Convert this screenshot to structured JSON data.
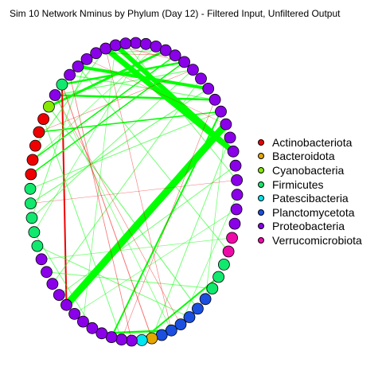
{
  "title": "Sim 10 Network Nminus by Phylum (Day 12) - Filtered Input, Unfiltered Output",
  "colors": {
    "positive_edge": "#00ff00",
    "negative_edge": "#ee0000",
    "node_border": "#000000"
  },
  "legend": [
    {
      "label": "Actinobacteriota",
      "color": "#ee0000"
    },
    {
      "label": "Bacteroidota",
      "color": "#e5a600"
    },
    {
      "label": "Cyanobacteria",
      "color": "#86e800"
    },
    {
      "label": "Firmicutes",
      "color": "#11e86e"
    },
    {
      "label": "Patescibacteria",
      "color": "#00e5ee"
    },
    {
      "label": "Planctomycetota",
      "color": "#1a4fe0"
    },
    {
      "label": "Proteobacteria",
      "color": "#8a00e8"
    },
    {
      "label": "Verrucomicrobiota",
      "color": "#ee0aa8"
    }
  ],
  "network": {
    "node_count": 64,
    "node_phyla": [
      "Proteobacteria",
      "Proteobacteria",
      "Proteobacteria",
      "Proteobacteria",
      "Proteobacteria",
      "Proteobacteria",
      "Proteobacteria",
      "Proteobacteria",
      "Proteobacteria",
      "Proteobacteria",
      "Proteobacteria",
      "Proteobacteria",
      "Proteobacteria",
      "Proteobacteria",
      "Proteobacteria",
      "Proteobacteria",
      "Proteobacteria",
      "Proteobacteria",
      "Proteobacteria",
      "Verrucomicrobiota",
      "Verrucomicrobiota",
      "Firmicutes",
      "Firmicutes",
      "Firmicutes",
      "Planctomycetota",
      "Planctomycetota",
      "Planctomycetota",
      "Planctomycetota",
      "Planctomycetota",
      "Planctomycetota",
      "Bacteroidota",
      "Patescibacteria",
      "Proteobacteria",
      "Proteobacteria",
      "Proteobacteria",
      "Proteobacteria",
      "Proteobacteria",
      "Proteobacteria",
      "Proteobacteria",
      "Proteobacteria",
      "Proteobacteria",
      "Proteobacteria",
      "Proteobacteria",
      "Proteobacteria",
      "Firmicutes",
      "Firmicutes",
      "Firmicutes",
      "Firmicutes",
      "Firmicutes",
      "Actinobacteriota",
      "Actinobacteriota",
      "Actinobacteriota",
      "Actinobacteriota",
      "Actinobacteriota",
      "Cyanobacteria",
      "Proteobacteria",
      "Firmicutes",
      "Proteobacteria",
      "Proteobacteria",
      "Proteobacteria",
      "Proteobacteria",
      "Proteobacteria",
      "Proteobacteria",
      "Proteobacteria"
    ],
    "edges": [
      {
        "from": 39,
        "to": 11,
        "weight": 9,
        "sign": "positive"
      },
      {
        "from": 61,
        "to": 13,
        "weight": 7,
        "sign": "positive"
      },
      {
        "from": 62,
        "to": 13,
        "weight": 6,
        "sign": "positive"
      },
      {
        "from": 8,
        "to": 58,
        "weight": 4,
        "sign": "positive"
      },
      {
        "from": 3,
        "to": 54,
        "weight": 3,
        "sign": "positive"
      },
      {
        "from": 5,
        "to": 56,
        "weight": 2.5,
        "sign": "positive"
      },
      {
        "from": 9,
        "to": 55,
        "weight": 2.5,
        "sign": "positive"
      },
      {
        "from": 10,
        "to": 34,
        "weight": 2,
        "sign": "positive"
      },
      {
        "from": 35,
        "to": 28,
        "weight": 2.5,
        "sign": "positive"
      },
      {
        "from": 22,
        "to": 31,
        "weight": 2,
        "sign": "positive"
      },
      {
        "from": 39,
        "to": 56,
        "weight": 2,
        "sign": "negative"
      },
      {
        "from": 10,
        "to": 52,
        "weight": 1.5,
        "sign": "positive"
      },
      {
        "from": 49,
        "to": 5,
        "weight": 1.5,
        "sign": "positive"
      },
      {
        "from": 50,
        "to": 4,
        "weight": 1.5,
        "sign": "positive"
      },
      {
        "from": 47,
        "to": 8,
        "weight": 1.2,
        "sign": "positive"
      },
      {
        "from": 51,
        "to": 61,
        "weight": 1.2,
        "sign": "positive"
      },
      {
        "from": 6,
        "to": 55,
        "weight": 1.2,
        "sign": "positive"
      },
      {
        "from": 57,
        "to": 9,
        "weight": 1.2,
        "sign": "positive"
      },
      {
        "from": 60,
        "to": 3,
        "weight": 1.2,
        "sign": "positive"
      },
      {
        "from": 54,
        "to": 25,
        "weight": 1.2,
        "sign": "positive"
      },
      {
        "from": 53,
        "to": 33,
        "weight": 1,
        "sign": "positive"
      },
      {
        "from": 48,
        "to": 10,
        "weight": 1,
        "sign": "positive"
      },
      {
        "from": 46,
        "to": 6,
        "weight": 1,
        "sign": "positive"
      },
      {
        "from": 45,
        "to": 36,
        "weight": 1,
        "sign": "positive"
      },
      {
        "from": 44,
        "to": 26,
        "weight": 1,
        "sign": "positive"
      },
      {
        "from": 42,
        "to": 23,
        "weight": 1,
        "sign": "positive"
      },
      {
        "from": 59,
        "to": 46,
        "weight": 1,
        "sign": "positive"
      },
      {
        "from": 63,
        "to": 15,
        "weight": 1,
        "sign": "positive"
      },
      {
        "from": 58,
        "to": 20,
        "weight": 1,
        "sign": "positive"
      },
      {
        "from": 7,
        "to": 41,
        "weight": 1,
        "sign": "positive"
      },
      {
        "from": 12,
        "to": 30,
        "weight": 1,
        "sign": "positive"
      },
      {
        "from": 14,
        "to": 40,
        "weight": 1,
        "sign": "positive"
      },
      {
        "from": 17,
        "to": 38,
        "weight": 0.8,
        "sign": "positive"
      },
      {
        "from": 19,
        "to": 43,
        "weight": 0.8,
        "sign": "positive"
      },
      {
        "from": 2,
        "to": 50,
        "weight": 0.8,
        "sign": "positive"
      },
      {
        "from": 1,
        "to": 45,
        "weight": 0.8,
        "sign": "positive"
      },
      {
        "from": 11,
        "to": 24,
        "weight": 0.8,
        "sign": "positive"
      },
      {
        "from": 37,
        "to": 62,
        "weight": 0.8,
        "sign": "positive"
      },
      {
        "from": 16,
        "to": 27,
        "weight": 0.8,
        "sign": "positive"
      },
      {
        "from": 28,
        "to": 55,
        "weight": 0.8,
        "sign": "positive"
      },
      {
        "from": 56,
        "to": 30,
        "weight": 1,
        "sign": "negative"
      },
      {
        "from": 57,
        "to": 32,
        "weight": 0.8,
        "sign": "negative"
      },
      {
        "from": 61,
        "to": 28,
        "weight": 0.6,
        "sign": "negative"
      },
      {
        "from": 62,
        "to": 5,
        "weight": 0.6,
        "sign": "negative"
      },
      {
        "from": 52,
        "to": 6,
        "weight": 0.6,
        "sign": "negative"
      },
      {
        "from": 4,
        "to": 60,
        "weight": 0.6,
        "sign": "negative"
      },
      {
        "from": 55,
        "to": 27,
        "weight": 0.6,
        "sign": "negative"
      },
      {
        "from": 9,
        "to": 33,
        "weight": 0.6,
        "sign": "negative"
      },
      {
        "from": 11,
        "to": 59,
        "weight": 0.5,
        "sign": "negative"
      },
      {
        "from": 15,
        "to": 47,
        "weight": 0.5,
        "sign": "negative"
      }
    ]
  }
}
